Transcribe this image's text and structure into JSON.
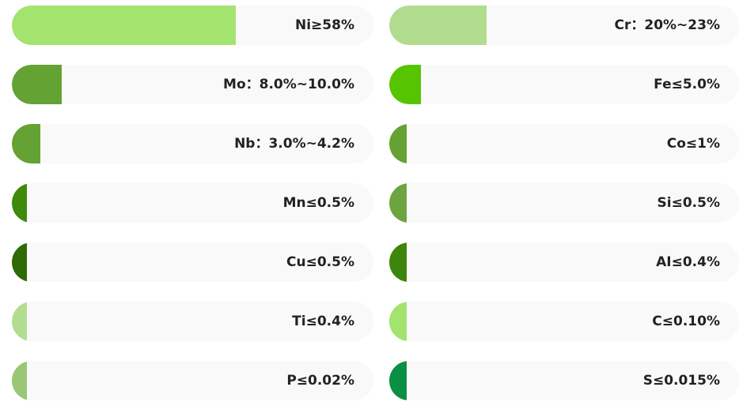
{
  "columns": [
    {
      "items": [
        {
          "label": "Ni≥58%",
          "level": 62,
          "color": "#a3e46f"
        },
        {
          "label": "Mo：8.0%~10.0%",
          "level": 13.8,
          "color": "#63a233"
        },
        {
          "label": "Nb：3.0%~4.2%",
          "level": 7.9,
          "color": "#63a233"
        },
        {
          "label": "Mn≤0.5%",
          "level": 4.2,
          "color": "#3f8a0c"
        },
        {
          "label": "Cu≤0.5%",
          "level": 4.2,
          "color": "#2e6b06"
        },
        {
          "label": "Ti≤0.4%",
          "level": 4.2,
          "color": "#b2dd91"
        },
        {
          "label": "P≤0.02%",
          "level": 4.2,
          "color": "#99c775"
        }
      ]
    },
    {
      "items": [
        {
          "label": "Cr：20%~23%",
          "level": 27.8,
          "color": "#b1dc8d"
        },
        {
          "label": "Fe≤5.0%",
          "level": 9,
          "color": "#57c400"
        },
        {
          "label": "Co≤1%",
          "level": 5,
          "color": "#63a233"
        },
        {
          "label": "Si≤0.5%",
          "level": 5,
          "color": "#6da43f"
        },
        {
          "label": "AI≤0.4%",
          "level": 5,
          "color": "#3e850d"
        },
        {
          "label": "C≤0.10%",
          "level": 5,
          "color": "#a3e46f"
        },
        {
          "label": "S≤0.015%",
          "level": 5,
          "color": "#0a8f43"
        }
      ]
    }
  ]
}
